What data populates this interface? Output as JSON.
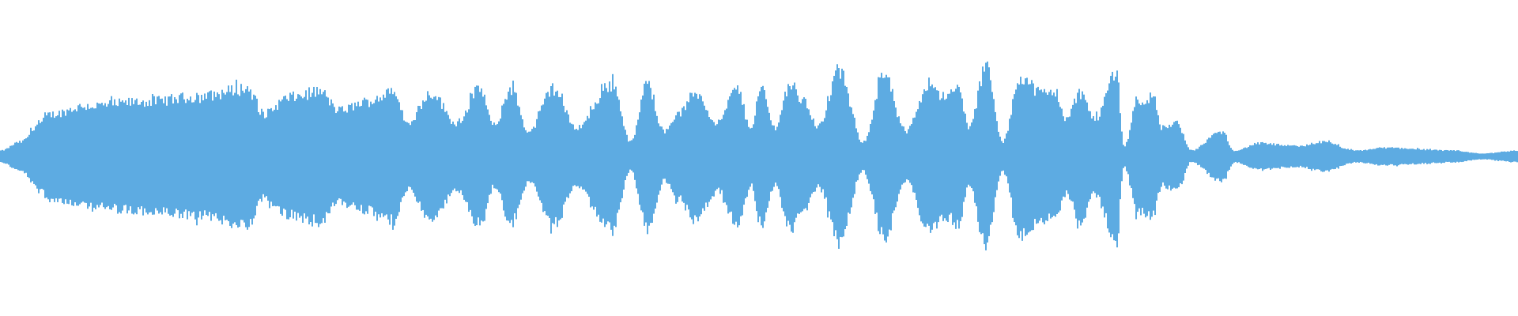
{
  "chart_data": {
    "type": "area",
    "title": "",
    "xlabel": "",
    "ylabel": "",
    "grid": false,
    "ylim": [
      -1,
      1
    ],
    "color": "#5dabe2",
    "envelope": [
      [
        0,
        0.04
      ],
      [
        1.3,
        0.1
      ],
      [
        2.6,
        0.23
      ],
      [
        3.2,
        0.29
      ],
      [
        5.7,
        0.35
      ],
      [
        9.6,
        0.38
      ],
      [
        12.8,
        0.41
      ],
      [
        16.3,
        0.47
      ],
      [
        17.2,
        0.29
      ],
      [
        19.1,
        0.41
      ],
      [
        21.0,
        0.45
      ],
      [
        22.3,
        0.32
      ],
      [
        24.2,
        0.38
      ],
      [
        25.8,
        0.44
      ],
      [
        26.8,
        0.23
      ],
      [
        28.4,
        0.44
      ],
      [
        30.0,
        0.23
      ],
      [
        31.6,
        0.47
      ],
      [
        32.5,
        0.2
      ],
      [
        33.6,
        0.47
      ],
      [
        34.8,
        0.17
      ],
      [
        36.4,
        0.47
      ],
      [
        37.9,
        0.2
      ],
      [
        40.3,
        0.5
      ],
      [
        41.5,
        0.1
      ],
      [
        42.6,
        0.5
      ],
      [
        43.7,
        0.17
      ],
      [
        44.6,
        0.29
      ],
      [
        45.8,
        0.44
      ],
      [
        47.2,
        0.23
      ],
      [
        48.5,
        0.47
      ],
      [
        49.4,
        0.2
      ],
      [
        50.1,
        0.47
      ],
      [
        51.0,
        0.2
      ],
      [
        52.0,
        0.5
      ],
      [
        52.9,
        0.38
      ],
      [
        53.9,
        0.2
      ],
      [
        55.2,
        0.59
      ],
      [
        56.8,
        0.1
      ],
      [
        58.2,
        0.56
      ],
      [
        59.6,
        0.17
      ],
      [
        61.2,
        0.51
      ],
      [
        62.2,
        0.41
      ],
      [
        63.1,
        0.47
      ],
      [
        63.8,
        0.2
      ],
      [
        64.9,
        0.62
      ],
      [
        66.0,
        0.1
      ],
      [
        67.2,
        0.55
      ],
      [
        68.6,
        0.44
      ],
      [
        69.5,
        0.44
      ],
      [
        70.2,
        0.26
      ],
      [
        71.1,
        0.44
      ],
      [
        72.1,
        0.26
      ],
      [
        73.5,
        0.59
      ],
      [
        74.0,
        0.07
      ],
      [
        74.9,
        0.38
      ],
      [
        75.9,
        0.41
      ],
      [
        76.5,
        0.2
      ],
      [
        77.5,
        0.23
      ],
      [
        78.4,
        0.04
      ],
      [
        80.4,
        0.17
      ],
      [
        81.3,
        0.04
      ],
      [
        82.9,
        0.09
      ],
      [
        85.5,
        0.07
      ],
      [
        87.1,
        0.1
      ],
      [
        89.3,
        0.04
      ],
      [
        91.2,
        0.06
      ],
      [
        95.7,
        0.04
      ],
      [
        97.6,
        0.02
      ],
      [
        100,
        0.04
      ]
    ]
  }
}
